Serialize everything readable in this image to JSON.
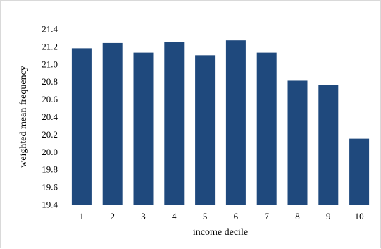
{
  "chart_data": {
    "type": "bar",
    "categories": [
      "1",
      "2",
      "3",
      "4",
      "5",
      "6",
      "7",
      "8",
      "9",
      "10"
    ],
    "values": [
      21.18,
      21.24,
      21.13,
      21.25,
      21.1,
      21.27,
      21.13,
      20.81,
      20.76,
      20.15
    ],
    "xlabel": "income decile",
    "ylabel": "weighted mean frequency",
    "ylim": [
      19.4,
      21.4
    ],
    "yticks": [
      "19.4",
      "19.6",
      "19.8",
      "20.0",
      "20.2",
      "20.4",
      "20.6",
      "20.8",
      "21.0",
      "21.2",
      "21.4"
    ],
    "grid": false,
    "legend": "none",
    "bar_color": "#1f497d",
    "axis_color": "#bfbfbf"
  }
}
